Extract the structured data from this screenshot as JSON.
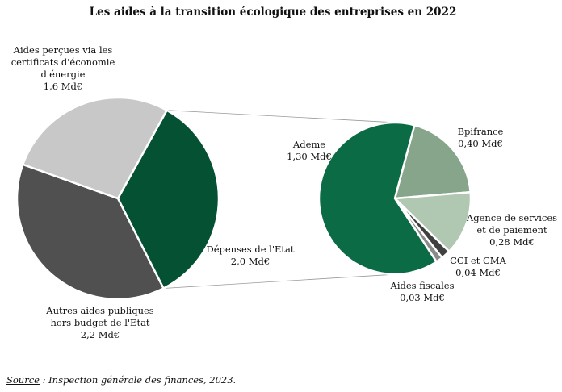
{
  "chart_data": [
    {
      "type": "pie",
      "title": "Les aides à la transition écologique des entreprises en 2022",
      "unit": "Md€",
      "slices": [
        {
          "label": [
            "Dépenses de l'Etat",
            "2,0 Md€"
          ],
          "value": 2.0,
          "color": "#055133"
        },
        {
          "label": [
            "Autres aides publiques",
            "hors budget de l'Etat",
            "2,2 Md€"
          ],
          "value": 2.2,
          "color": "#505050"
        },
        {
          "label": [
            "Aides perçues via les",
            "certificats d'économie",
            "d'énergie",
            "1,6 Md€"
          ],
          "value": 1.6,
          "color": "#c8c8c8"
        }
      ]
    },
    {
      "type": "pie",
      "breakdown_of": "Dépenses de l'Etat",
      "unit": "Md€",
      "slices": [
        {
          "label": [
            "Bpifrance",
            "0,40 Md€"
          ],
          "value": 0.4,
          "color": "#86a58b"
        },
        {
          "label": [
            "Agence de services",
            "et de paiement",
            "0,28 Md€"
          ],
          "value": 0.28,
          "color": "#b0c8b2"
        },
        {
          "label": [
            "CCI et CMA",
            "0,04 Md€"
          ],
          "value": 0.04,
          "color": "#404040"
        },
        {
          "label": [
            "Aides fiscales",
            "0,03 Md€"
          ],
          "value": 0.03,
          "color": "#8a8a8a"
        },
        {
          "label": [
            "Ademe",
            "1,30 Md€"
          ],
          "value": 1.3,
          "color": "#0a6b45"
        }
      ]
    }
  ],
  "source": {
    "prefix": "Source",
    "text": " : Inspection générale des finances, 2023."
  }
}
